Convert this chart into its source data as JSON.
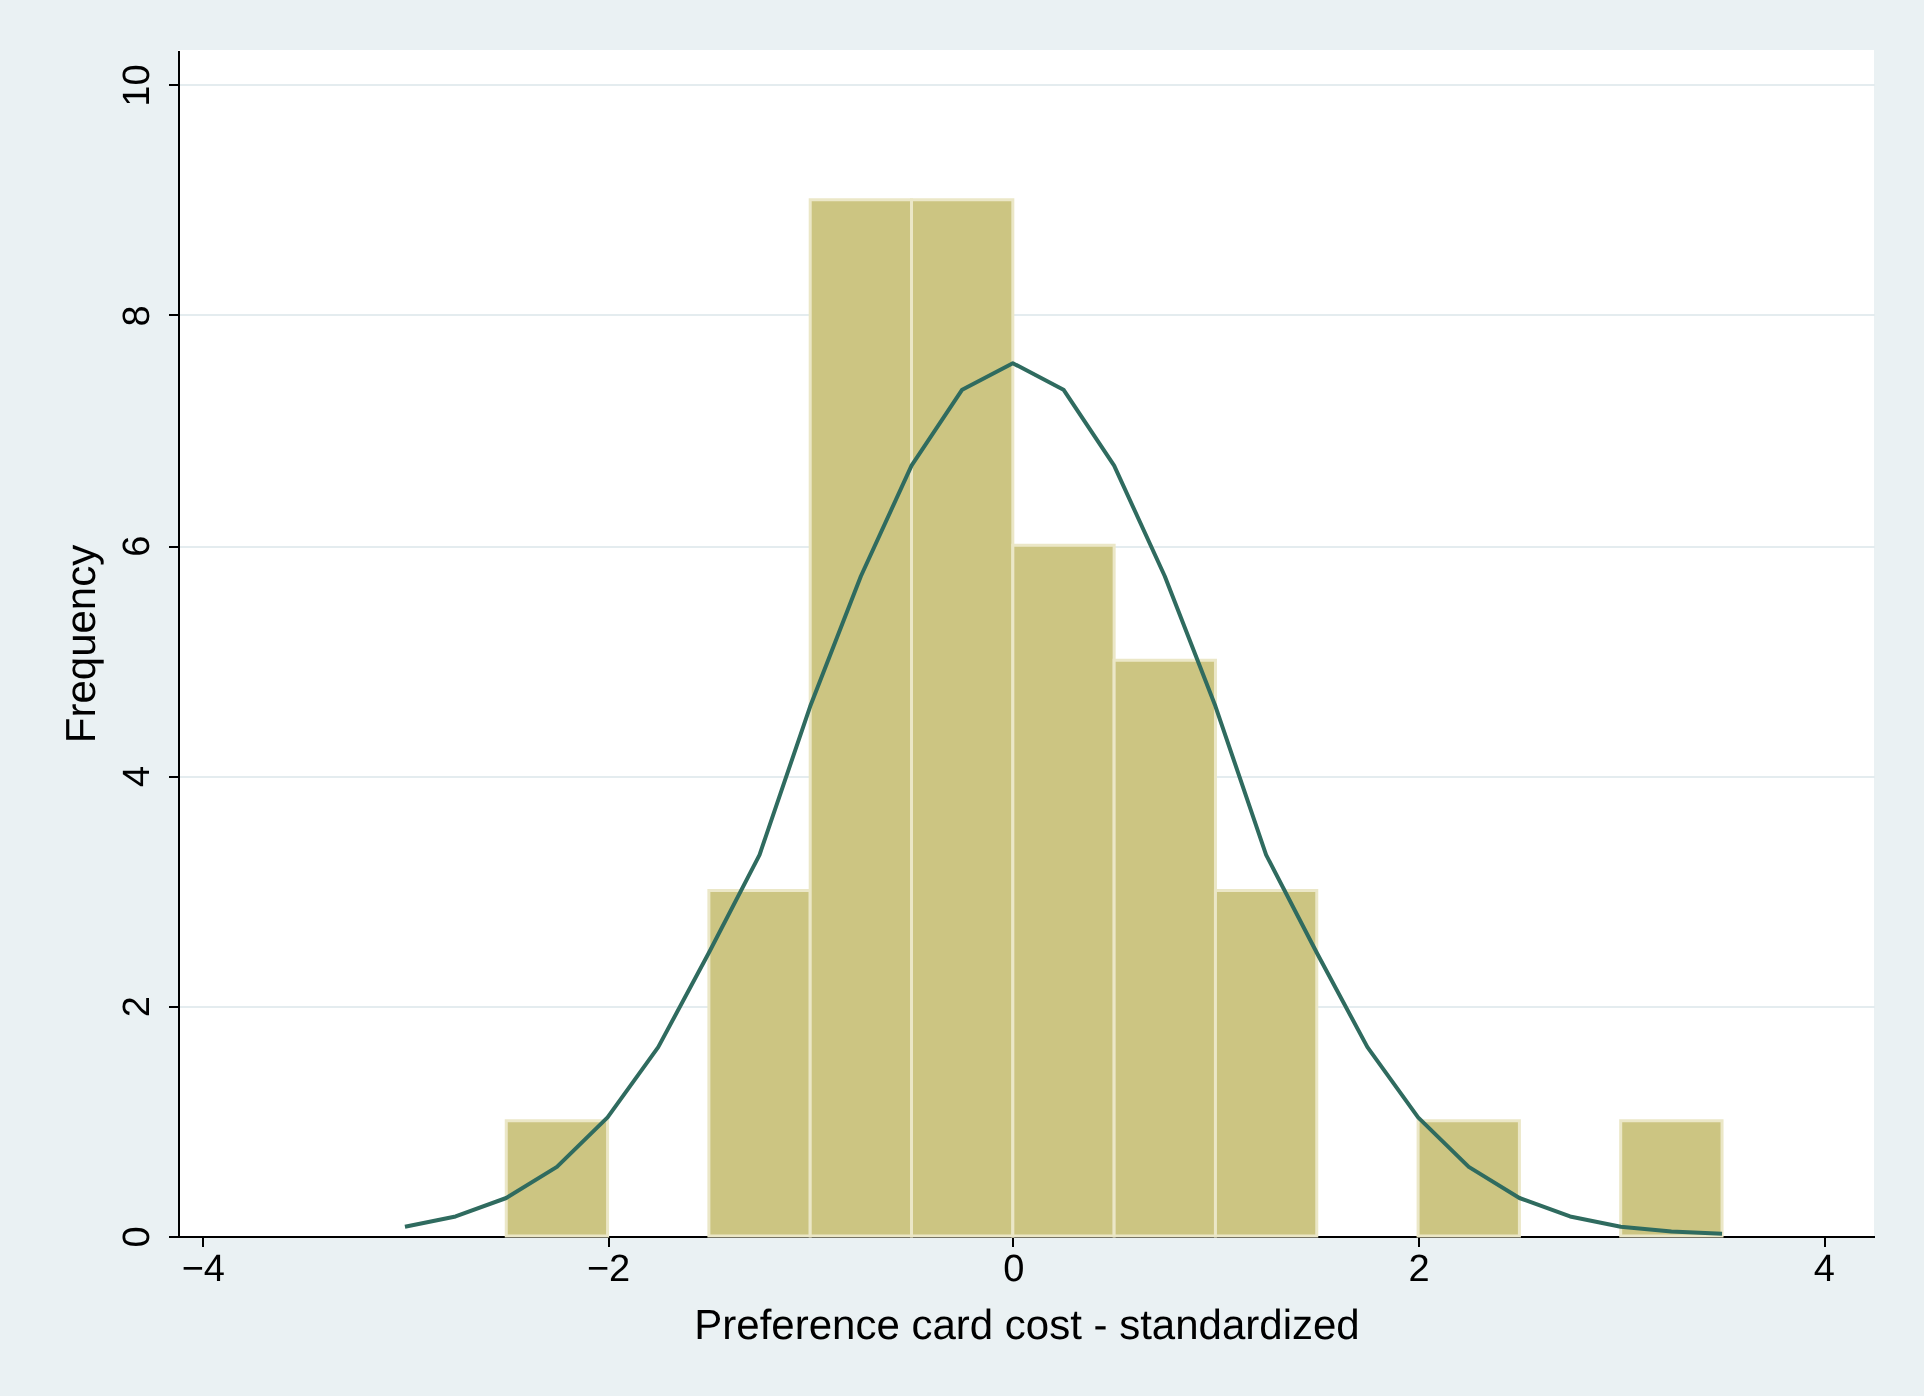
{
  "chart_data": {
    "type": "histogram",
    "xlabel": "Preference card cost - standardized",
    "ylabel": "Frequency",
    "bins": [
      -2.5,
      -2,
      -1.5,
      -1,
      -0.5,
      0,
      0.5,
      1,
      1.5,
      2,
      2.5,
      3,
      3.5
    ],
    "values": [
      1,
      0,
      3,
      9,
      9,
      6,
      5,
      3,
      0,
      1,
      0,
      1
    ],
    "color": "#ccc582",
    "series": [
      {
        "type": "line",
        "color": "#2f6b5f",
        "x": [
          -3,
          -2.75,
          -2.5,
          -2.25,
          -2,
          -1.75,
          -1.5,
          -1.25,
          -1,
          -0.75,
          -0.5,
          -0.25,
          0,
          0.25,
          0.5,
          0.75,
          1,
          1.25,
          1.5,
          1.75,
          2,
          2.25,
          2.5,
          2.75,
          3,
          3.25,
          3.5
        ],
        "values": [
          0.08,
          0.17,
          0.33,
          0.6,
          1.03,
          1.64,
          2.46,
          3.31,
          4.6,
          5.73,
          6.69,
          7.35,
          7.58,
          7.35,
          6.69,
          5.73,
          4.6,
          3.31,
          2.46,
          1.64,
          1.03,
          0.6,
          0.33,
          0.17,
          0.08,
          0.04,
          0.02
        ]
      }
    ],
    "xlim": [
      -4.12,
      4.25
    ],
    "xticks": [
      -4,
      -2,
      0,
      2,
      4
    ],
    "ylim": [
      0,
      10.3
    ],
    "yticks": [
      0,
      2,
      4,
      6,
      8,
      10
    ],
    "grid": "y",
    "line_style": "solid",
    "marker": "none"
  }
}
